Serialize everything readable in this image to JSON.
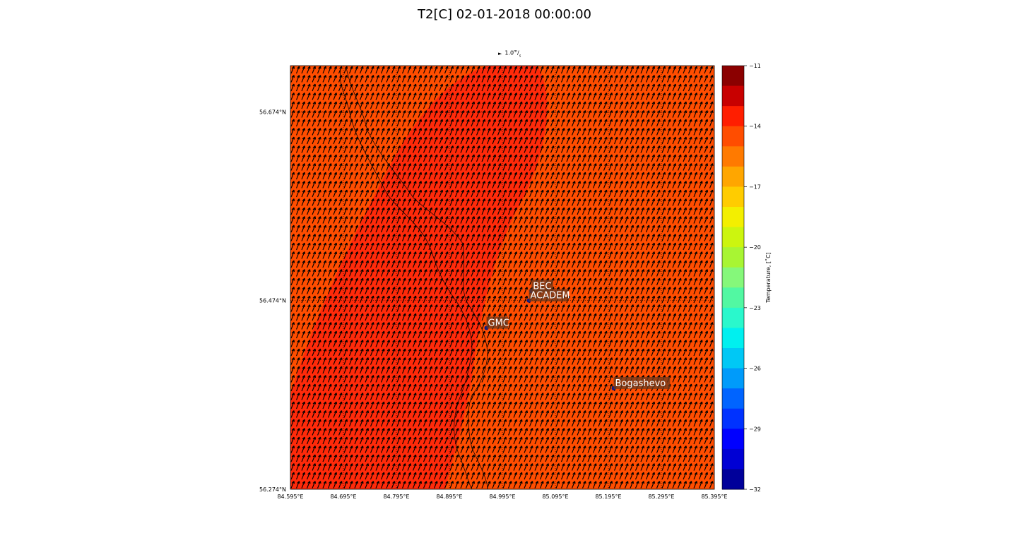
{
  "title": "T2[C] 02-01-2018 00:00:00",
  "quiver_key": {
    "arrow": "►",
    "value": "1.0",
    "unit_num": "m",
    "unit_den": "s"
  },
  "map": {
    "lon_range": [
      84.595,
      85.395
    ],
    "lat_range": [
      56.274,
      56.723
    ],
    "lon_ticks": [
      "84.595°E",
      "84.695°E",
      "84.795°E",
      "84.895°E",
      "84.995°E",
      "85.095°E",
      "85.195°E",
      "85.295°E",
      "85.395°E"
    ],
    "lon_tick_values": [
      84.595,
      84.695,
      84.795,
      84.895,
      84.995,
      85.095,
      85.195,
      85.295,
      85.395
    ],
    "lat_ticks": [
      "56.674°N",
      "56.474°N",
      "56.274°N"
    ],
    "lat_tick_values": [
      56.674,
      56.474,
      56.274
    ],
    "field_color": "#ff4d00",
    "warm_zone_color": "#ff2a0a",
    "wind_arrow_color": "#000000",
    "stations": [
      {
        "name": "BEC",
        "lon": 85.05,
        "lat": 56.484
      },
      {
        "name": "ACADEM",
        "lon": 85.045,
        "lat": 56.474
      },
      {
        "name": "GMC",
        "lon": 84.965,
        "lat": 56.445
      },
      {
        "name": "Bogashevo",
        "lon": 85.205,
        "lat": 56.381
      }
    ]
  },
  "colorbar": {
    "label": "Temperature, [$^\\circ$C]",
    "label_text": "Temperature, [˚C]",
    "ticks": [
      "−11",
      "−14",
      "−17",
      "−20",
      "−23",
      "−26",
      "−29",
      "−32"
    ],
    "tick_values": [
      -11,
      -14,
      -17,
      -20,
      -23,
      -26,
      -29,
      -32
    ],
    "range": [
      -32,
      -11
    ],
    "colors": [
      "#8b0000",
      "#c80000",
      "#ff1e00",
      "#ff4d00",
      "#ff7a00",
      "#ffa600",
      "#ffcc00",
      "#f3ef00",
      "#ccf50f",
      "#a8f533",
      "#85f87a",
      "#52f8a2",
      "#2af8cc",
      "#00f0ef",
      "#00c8f5",
      "#009bfa",
      "#0064ff",
      "#0032ff",
      "#0000ff",
      "#0000d4",
      "#00009a"
    ]
  }
}
